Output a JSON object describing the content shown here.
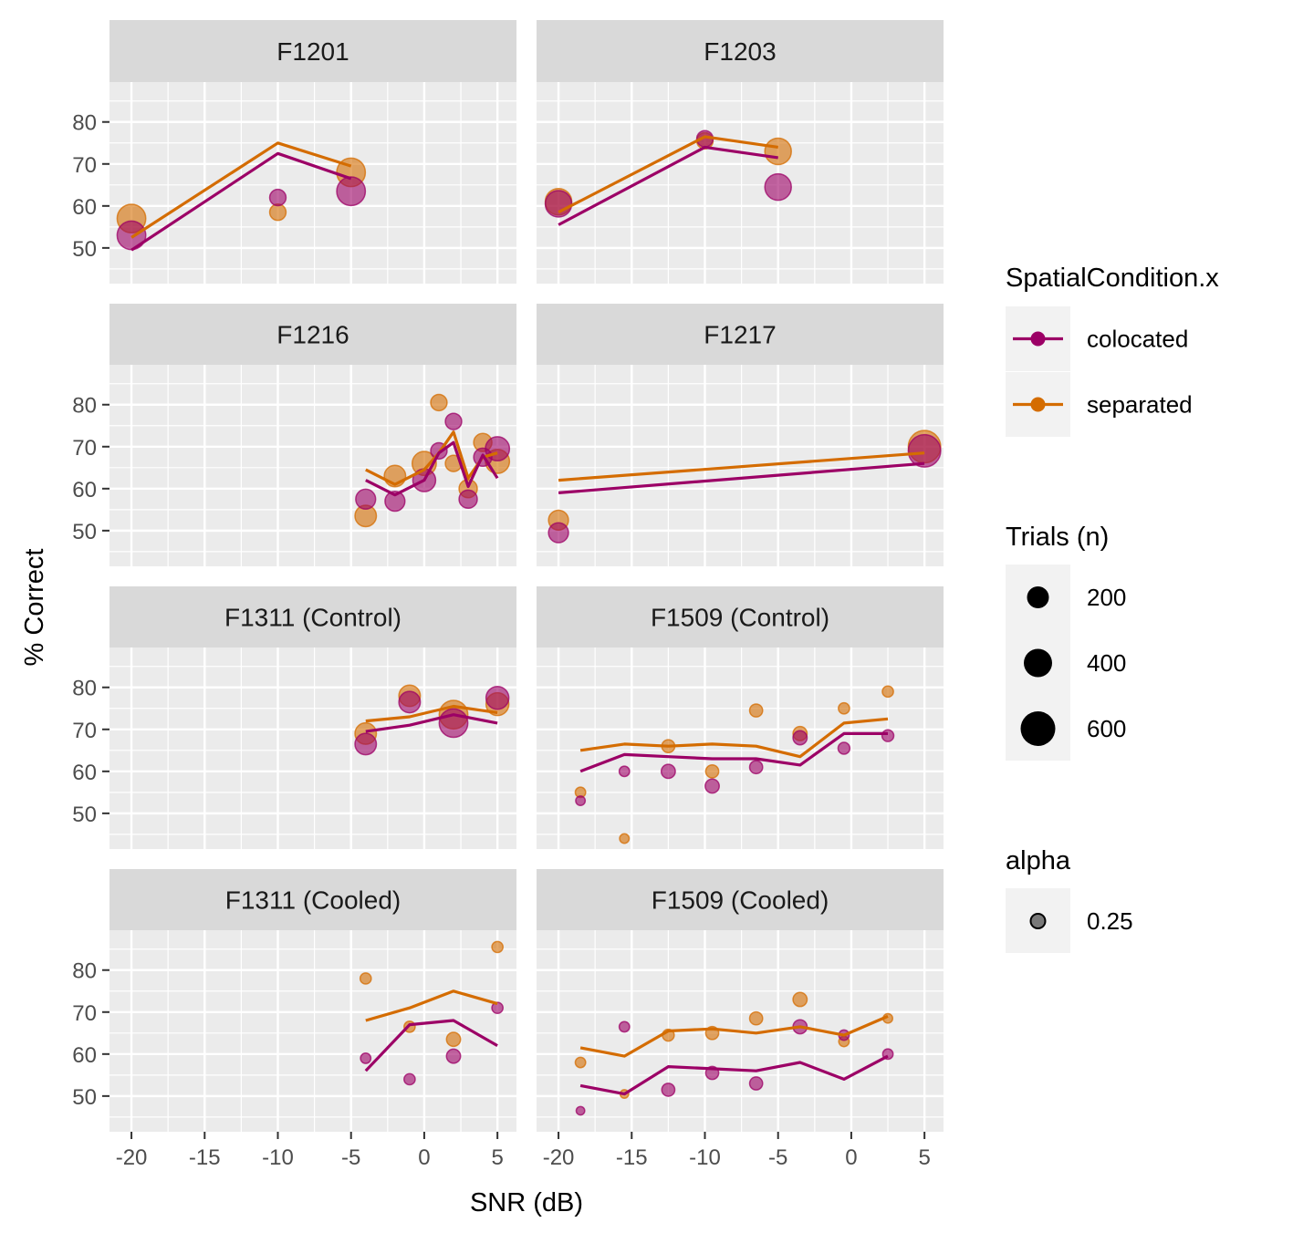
{
  "chart_data": {
    "type": "scatter",
    "xlabel": "SNR (dB)",
    "ylabel": "% Correct",
    "xlim": [
      -21.5,
      6.3
    ],
    "ylim": [
      41.5,
      89.5
    ],
    "x_ticks": [
      -20,
      -15,
      -10,
      -5,
      0,
      5
    ],
    "y_ticks": [
      50,
      60,
      70,
      80
    ],
    "grid": true,
    "facet_layout": "4 rows x 2 columns",
    "colors": {
      "colocated": "#9C0066",
      "separated": "#D46C00"
    },
    "panels": [
      {
        "title": "F1201",
        "lines": {
          "colocated": [
            [
              -20,
              49.5
            ],
            [
              -10,
              72.5
            ],
            [
              -5,
              66.5
            ]
          ],
          "separated": [
            [
              -20,
              52.5
            ],
            [
              -10,
              75
            ],
            [
              -5,
              69.5
            ]
          ]
        },
        "points": {
          "colocated": [
            [
              -20,
              53,
              600
            ],
            [
              -10,
              62,
              150
            ],
            [
              -5,
              63.5,
              600
            ]
          ],
          "separated": [
            [
              -20,
              57,
              600
            ],
            [
              -10,
              58.5,
              150
            ],
            [
              -5,
              68,
              600
            ]
          ]
        }
      },
      {
        "title": "F1203",
        "lines": {
          "colocated": [
            [
              -20,
              55.5
            ],
            [
              -10,
              74
            ],
            [
              -5,
              71.5
            ]
          ],
          "separated": [
            [
              -20,
              58.5
            ],
            [
              -10,
              76.5
            ],
            [
              -5,
              74
            ]
          ]
        },
        "points": {
          "colocated": [
            [
              -20,
              60.5,
              500
            ],
            [
              -10,
              76,
              150
            ],
            [
              -5,
              64.5,
              500
            ]
          ],
          "separated": [
            [
              -20,
              61,
              500
            ],
            [
              -10,
              75.5,
              150
            ],
            [
              -5,
              73,
              500
            ]
          ]
        }
      },
      {
        "title": "F1216",
        "lines": {
          "colocated": [
            [
              -4,
              62
            ],
            [
              -2,
              58.5
            ],
            [
              0,
              62
            ],
            [
              1,
              68.5
            ],
            [
              2,
              71
            ],
            [
              3,
              60.5
            ],
            [
              4,
              68
            ],
            [
              5,
              62.5
            ]
          ],
          "separated": [
            [
              -4,
              64.5
            ],
            [
              -2,
              61
            ],
            [
              0,
              64.5
            ],
            [
              1,
              68.5
            ],
            [
              2,
              73.5
            ],
            [
              3,
              62.5
            ],
            [
              4,
              67.5
            ],
            [
              5,
              68.5
            ]
          ]
        },
        "points": {
          "colocated": [
            [
              -4,
              57.5,
              250
            ],
            [
              -2,
              57,
              250
            ],
            [
              0,
              62,
              350
            ],
            [
              1,
              69,
              150
            ],
            [
              2,
              76,
              150
            ],
            [
              3,
              57.5,
              200
            ],
            [
              4,
              67.5,
              200
            ],
            [
              5,
              69.5,
              400
            ]
          ],
          "separated": [
            [
              -4,
              53.5,
              300
            ],
            [
              -2,
              63,
              300
            ],
            [
              0,
              66,
              400
            ],
            [
              1,
              80.5,
              150
            ],
            [
              2,
              66,
              150
            ],
            [
              3,
              60,
              200
            ],
            [
              4,
              71,
              200
            ],
            [
              5,
              66.5,
              400
            ]
          ]
        }
      },
      {
        "title": "F1217",
        "lines": {
          "colocated": [
            [
              -20,
              59
            ],
            [
              5,
              66
            ]
          ],
          "separated": [
            [
              -20,
              62
            ],
            [
              5,
              68.5
            ]
          ]
        },
        "points": {
          "colocated": [
            [
              -20,
              49.5,
              250
            ],
            [
              5,
              69,
              800
            ]
          ],
          "separated": [
            [
              -20,
              52.5,
              250
            ],
            [
              5,
              70,
              800
            ]
          ]
        }
      },
      {
        "title": "F1311 (Control)",
        "lines": {
          "colocated": [
            [
              -4,
              69.5
            ],
            [
              -1,
              71
            ],
            [
              2,
              73.5
            ],
            [
              5,
              71.5
            ]
          ],
          "separated": [
            [
              -4,
              72
            ],
            [
              -1,
              73
            ],
            [
              2,
              75.5
            ],
            [
              5,
              74
            ]
          ]
        },
        "points": {
          "colocated": [
            [
              -4,
              66.5,
              300
            ],
            [
              -1,
              76.5,
              300
            ],
            [
              2,
              71.5,
              600
            ],
            [
              5,
              77.5,
              350
            ]
          ],
          "separated": [
            [
              -4,
              69,
              300
            ],
            [
              -1,
              78,
              300
            ],
            [
              2,
              73.5,
              600
            ],
            [
              5,
              76,
              350
            ]
          ]
        }
      },
      {
        "title": "F1509 (Control)",
        "lines": {
          "colocated": [
            [
              -18.5,
              60
            ],
            [
              -15.5,
              64
            ],
            [
              -12.5,
              63.5
            ],
            [
              -9.5,
              63
            ],
            [
              -6.5,
              63
            ],
            [
              -3.5,
              61.5
            ],
            [
              -0.5,
              69
            ],
            [
              2.5,
              69
            ]
          ],
          "separated": [
            [
              -18.5,
              65
            ],
            [
              -15.5,
              66.5
            ],
            [
              -12.5,
              66
            ],
            [
              -9.5,
              66.5
            ],
            [
              -6.5,
              66
            ],
            [
              -3.5,
              63.5
            ],
            [
              -0.5,
              71.5
            ],
            [
              2.5,
              72.5
            ]
          ]
        },
        "points": {
          "colocated": [
            [
              -18.5,
              53,
              30
            ],
            [
              -15.5,
              60,
              40
            ],
            [
              -12.5,
              60,
              100
            ],
            [
              -9.5,
              56.5,
              100
            ],
            [
              -6.5,
              61,
              80
            ],
            [
              -3.5,
              68,
              100
            ],
            [
              -0.5,
              65.5,
              60
            ],
            [
              2.5,
              68.5,
              60
            ]
          ],
          "separated": [
            [
              -18.5,
              55,
              40
            ],
            [
              -15.5,
              44,
              30
            ],
            [
              -12.5,
              66,
              80
            ],
            [
              -9.5,
              60,
              80
            ],
            [
              -6.5,
              74.5,
              80
            ],
            [
              -3.5,
              69,
              100
            ],
            [
              -0.5,
              75,
              50
            ],
            [
              2.5,
              79,
              50
            ]
          ]
        }
      },
      {
        "title": "F1311 (Cooled)",
        "lines": {
          "colocated": [
            [
              -4,
              56
            ],
            [
              -1,
              67
            ],
            [
              2,
              68
            ],
            [
              5,
              62
            ]
          ],
          "separated": [
            [
              -4,
              68
            ],
            [
              -1,
              71
            ],
            [
              2,
              75
            ],
            [
              5,
              72
            ]
          ]
        },
        "points": {
          "colocated": [
            [
              -4,
              59,
              40
            ],
            [
              -1,
              54,
              50
            ],
            [
              2,
              59.5,
              100
            ],
            [
              5,
              71,
              50
            ]
          ],
          "separated": [
            [
              -4,
              78,
              50
            ],
            [
              -1,
              66.5,
              50
            ],
            [
              2,
              63.5,
              100
            ],
            [
              5,
              85.5,
              50
            ]
          ]
        }
      },
      {
        "title": "F1509 (Cooled)",
        "lines": {
          "colocated": [
            [
              -18.5,
              52.5
            ],
            [
              -15.5,
              50.5
            ],
            [
              -12.5,
              57
            ],
            [
              -9.5,
              56.5
            ],
            [
              -6.5,
              56
            ],
            [
              -3.5,
              58
            ],
            [
              -0.5,
              54
            ],
            [
              2.5,
              59.5
            ]
          ],
          "separated": [
            [
              -18.5,
              61.5
            ],
            [
              -15.5,
              59.5
            ],
            [
              -12.5,
              65.5
            ],
            [
              -9.5,
              66
            ],
            [
              -6.5,
              65
            ],
            [
              -3.5,
              66.5
            ],
            [
              -0.5,
              64.5
            ],
            [
              2.5,
              69
            ]
          ]
        },
        "points": {
          "colocated": [
            [
              -18.5,
              46.5,
              20
            ],
            [
              -15.5,
              66.5,
              40
            ],
            [
              -12.5,
              51.5,
              80
            ],
            [
              -9.5,
              55.5,
              80
            ],
            [
              -6.5,
              53,
              80
            ],
            [
              -3.5,
              66.5,
              100
            ],
            [
              -0.5,
              64.5,
              40
            ],
            [
              2.5,
              60,
              40
            ]
          ],
          "separated": [
            [
              -18.5,
              58,
              40
            ],
            [
              -15.5,
              50.5,
              20
            ],
            [
              -12.5,
              64.5,
              60
            ],
            [
              -9.5,
              65,
              80
            ],
            [
              -6.5,
              68.5,
              80
            ],
            [
              -3.5,
              73,
              100
            ],
            [
              -0.5,
              63,
              40
            ],
            [
              2.5,
              68.5,
              30
            ]
          ]
        }
      }
    ],
    "legend": {
      "placement": "right",
      "color": {
        "title": "SpatialCondition.x",
        "entries": [
          {
            "label": "colocated",
            "color": "#9C0066"
          },
          {
            "label": "separated",
            "color": "#D46C00"
          }
        ]
      },
      "size": {
        "title": "Trials (n)",
        "entries": [
          {
            "label": "200",
            "value": 200
          },
          {
            "label": "400",
            "value": 400
          },
          {
            "label": "600",
            "value": 600
          }
        ]
      },
      "alpha": {
        "title": "alpha",
        "entries": [
          {
            "label": "0.25",
            "value": 0.25
          }
        ]
      }
    }
  }
}
